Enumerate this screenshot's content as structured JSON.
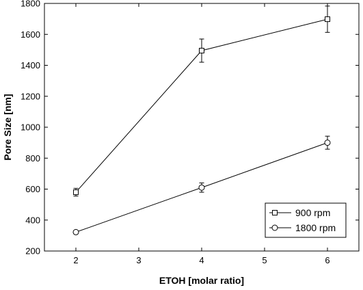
{
  "chart_data": {
    "type": "line",
    "xlabel": "ETOH [molar ratio]",
    "ylabel": "Pore Size [nm]",
    "xlim": [
      1.5,
      6.5
    ],
    "ylim": [
      200,
      1800
    ],
    "xticks": [
      2,
      3,
      4,
      5,
      6
    ],
    "yticks": [
      200,
      400,
      600,
      800,
      1000,
      1200,
      1400,
      1600,
      1800
    ],
    "x": [
      2,
      4,
      6
    ],
    "series": [
      {
        "name": "900 rpm",
        "marker": "square",
        "values": [
          580,
          1495,
          1698
        ],
        "errors": [
          25,
          75,
          85
        ]
      },
      {
        "name": "1800 rpm",
        "marker": "circle",
        "values": [
          322,
          610,
          900
        ],
        "errors": [
          10,
          30,
          42
        ]
      }
    ],
    "legend_position": "bottom-right",
    "grid": false
  }
}
